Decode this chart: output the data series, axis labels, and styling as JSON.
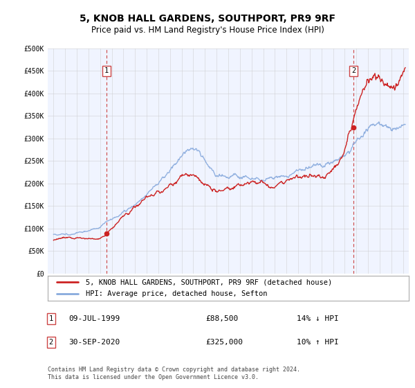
{
  "title": "5, KNOB HALL GARDENS, SOUTHPORT, PR9 9RF",
  "subtitle": "Price paid vs. HM Land Registry's House Price Index (HPI)",
  "legend_label_red": "5, KNOB HALL GARDENS, SOUTHPORT, PR9 9RF (detached house)",
  "legend_label_blue": "HPI: Average price, detached house, Sefton",
  "annotation1_label": "1",
  "annotation1_date": "09-JUL-1999",
  "annotation1_price": "£88,500",
  "annotation1_hpi": "14% ↓ HPI",
  "annotation2_label": "2",
  "annotation2_date": "30-SEP-2020",
  "annotation2_price": "£325,000",
  "annotation2_hpi": "10% ↑ HPI",
  "footer1": "Contains HM Land Registry data © Crown copyright and database right 2024.",
  "footer2": "This data is licensed under the Open Government Licence v3.0.",
  "sale1_year": 1999.54,
  "sale1_value": 88500,
  "sale2_year": 2020.75,
  "sale2_value": 325000,
  "ylim_min": 0,
  "ylim_max": 500000,
  "yticks": [
    0,
    50000,
    100000,
    150000,
    200000,
    250000,
    300000,
    350000,
    400000,
    450000,
    500000
  ],
  "ytick_labels": [
    "£0",
    "£50K",
    "£100K",
    "£150K",
    "£200K",
    "£250K",
    "£300K",
    "£350K",
    "£400K",
    "£450K",
    "£500K"
  ],
  "xlim_min": 1994.5,
  "xlim_max": 2025.5,
  "xticks": [
    1995,
    1996,
    1997,
    1998,
    1999,
    2000,
    2001,
    2002,
    2003,
    2004,
    2005,
    2006,
    2007,
    2008,
    2009,
    2010,
    2011,
    2012,
    2013,
    2014,
    2015,
    2016,
    2017,
    2018,
    2019,
    2020,
    2021,
    2022,
    2023,
    2024,
    2025
  ],
  "fig_bg_color": "#ffffff",
  "plot_bg_color": "#f0f4ff",
  "grid_color": "#cccccc",
  "red_color": "#cc2222",
  "blue_color": "#88aadd",
  "sale_marker_color": "#cc2222",
  "vline_color": "#cc4444",
  "title_fontsize": 10,
  "subtitle_fontsize": 8.5,
  "tick_fontsize": 7,
  "legend_fontsize": 7.5,
  "annotation_fontsize": 8,
  "footer_fontsize": 6
}
